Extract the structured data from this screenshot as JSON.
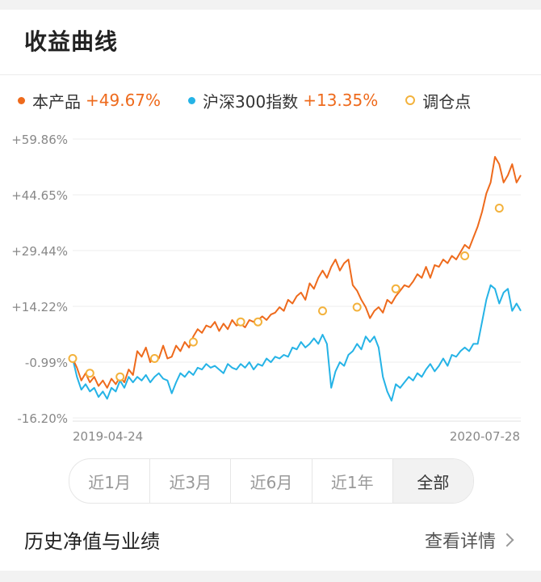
{
  "section": {
    "title": "收益曲线"
  },
  "legend": [
    {
      "name": "本产品",
      "value": "+49.67%",
      "color": "#ee6a1c",
      "marker": "dot"
    },
    {
      "name": "沪深300指数",
      "value": "+13.35%",
      "color": "#25b3e6",
      "marker": "dot"
    },
    {
      "name": "调仓点",
      "value": "",
      "color": "#f3b23c",
      "marker": "ring"
    }
  ],
  "tabs": [
    {
      "label": "近1月",
      "active": false
    },
    {
      "label": "近3月",
      "active": false
    },
    {
      "label": "近6月",
      "active": false
    },
    {
      "label": "近1年",
      "active": false
    },
    {
      "label": "全部",
      "active": true
    }
  ],
  "history": {
    "title": "历史净值与业绩",
    "link": "查看详情"
  },
  "chart_data": {
    "type": "line",
    "title": "",
    "xlabel": "",
    "ylabel": "",
    "x_tick_labels": [
      "2019-04-24",
      "2020-07-28"
    ],
    "y_tick_labels": [
      "+59.86%",
      "+44.65%",
      "+29.44%",
      "+14.22%",
      "-0.99%",
      "-16.20%"
    ],
    "ylim": [
      -16.2,
      59.86
    ],
    "grid": true,
    "series": [
      {
        "name": "本产品",
        "color": "#ee6a1c",
        "values": [
          0.0,
          -2.5,
          -6.0,
          -4.0,
          -6.5,
          -5.0,
          -7.5,
          -6.0,
          -8.0,
          -5.5,
          -7.0,
          -5.0,
          -6.5,
          -3.0,
          -4.5,
          2.0,
          0.5,
          3.0,
          -1.0,
          1.0,
          0.0,
          3.5,
          0.0,
          0.5,
          3.5,
          2.0,
          4.5,
          3.0,
          6.0,
          8.0,
          7.0,
          9.0,
          8.5,
          10.0,
          7.5,
          9.5,
          8.0,
          10.5,
          9.0,
          9.5,
          8.5,
          10.5,
          10.0,
          10.5,
          11.5,
          10.5,
          12.0,
          12.5,
          14.0,
          13.0,
          16.0,
          15.0,
          17.0,
          18.0,
          16.0,
          20.5,
          19.0,
          22.0,
          24.0,
          22.0,
          25.0,
          27.0,
          24.0,
          26.0,
          27.0,
          20.0,
          18.5,
          16.0,
          14.0,
          11.0,
          13.0,
          14.0,
          12.5,
          16.0,
          15.0,
          17.0,
          18.5,
          20.0,
          19.5,
          21.0,
          23.0,
          22.0,
          25.0,
          22.0,
          25.5,
          25.0,
          27.0,
          26.0,
          28.0,
          27.0,
          29.0,
          31.0,
          30.0,
          33.0,
          36.0,
          40.0,
          45.0,
          48.0,
          55.0,
          53.0,
          48.0,
          50.0,
          53.0,
          48.0,
          50.0
        ],
        "rebalance_points": [
          [
            0,
            0.0
          ],
          [
            4,
            -4.0
          ],
          [
            11,
            -5.0
          ],
          [
            19,
            0.0
          ],
          [
            28,
            4.5
          ],
          [
            39,
            10.0
          ],
          [
            43,
            10.0
          ],
          [
            58,
            13.0
          ],
          [
            66,
            14.0
          ],
          [
            75,
            19.0
          ],
          [
            91,
            28.0
          ],
          [
            99,
            41.0
          ]
        ]
      },
      {
        "name": "沪深300指数",
        "color": "#25b3e6",
        "values": [
          0.0,
          -5.0,
          -8.5,
          -7.0,
          -9.0,
          -8.0,
          -10.5,
          -9.0,
          -11.0,
          -8.0,
          -9.0,
          -6.0,
          -8.0,
          -5.0,
          -6.5,
          -5.0,
          -6.0,
          -4.5,
          -6.5,
          -5.0,
          -4.0,
          -5.5,
          -6.0,
          -9.5,
          -6.5,
          -4.0,
          -5.0,
          -3.5,
          -4.5,
          -2.5,
          -3.0,
          -1.5,
          -2.5,
          -2.0,
          -3.0,
          -4.0,
          -1.5,
          -2.5,
          -3.0,
          -1.5,
          -2.5,
          -1.0,
          -3.0,
          -1.5,
          -2.0,
          0.0,
          -1.0,
          0.5,
          0.0,
          1.0,
          0.5,
          3.0,
          2.5,
          4.5,
          3.0,
          4.0,
          5.5,
          4.0,
          6.5,
          4.0,
          -8.0,
          -3.5,
          -1.0,
          -2.0,
          1.0,
          2.0,
          4.0,
          2.5,
          6.0,
          4.5,
          6.0,
          3.0,
          -5.0,
          -9.0,
          -11.5,
          -7.0,
          -8.0,
          -6.5,
          -5.0,
          -6.0,
          -4.0,
          -5.0,
          -3.0,
          -1.5,
          -3.5,
          -2.0,
          0.0,
          -2.0,
          1.0,
          0.5,
          2.0,
          3.0,
          2.0,
          4.0,
          4.0,
          10.0,
          16.0,
          20.0,
          19.0,
          15.0,
          18.0,
          19.0,
          13.0,
          15.0,
          13.0
        ]
      }
    ]
  }
}
